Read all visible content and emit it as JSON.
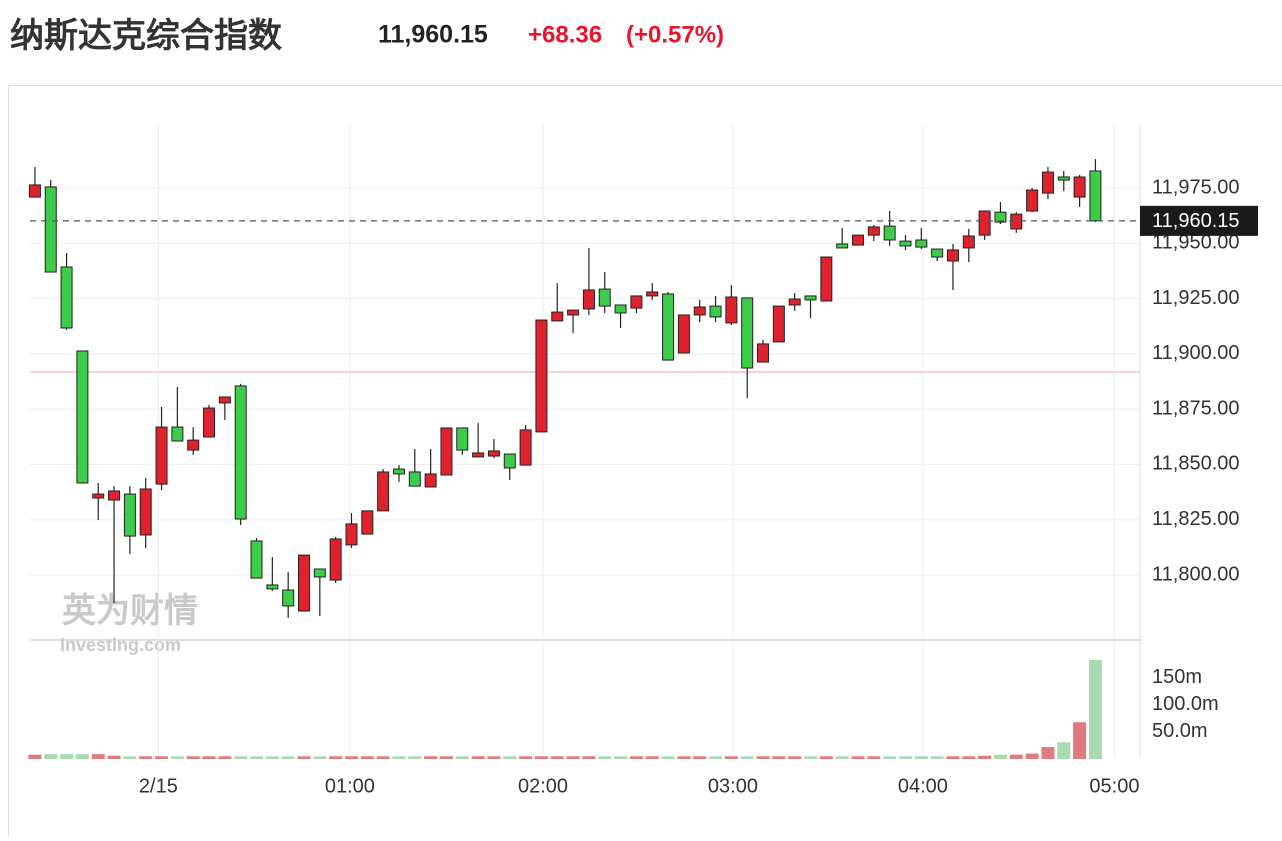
{
  "header": {
    "title": "纳斯达克综合指数",
    "price": "11,960.15",
    "change": "+68.36",
    "change_pct": "(+0.57%)"
  },
  "watermark": {
    "brand": "英为财情",
    "site": "Investing.com"
  },
  "chart_data": {
    "type": "candlestick",
    "up_color": "#e0222f",
    "down_color": "#3dcc4a",
    "volume_up_color": "#e07a7f",
    "volume_down_color": "#a9dbb3",
    "grid": true,
    "xlim": [
      -0.5,
      69.5
    ],
    "xticks": [
      {
        "value": 7.8,
        "label": "2/15"
      },
      {
        "value": 19.9,
        "label": "01:00"
      },
      {
        "value": 32.1,
        "label": "02:00"
      },
      {
        "value": 44.1,
        "label": "03:00"
      },
      {
        "value": 56.1,
        "label": "04:00"
      },
      {
        "value": 68.2,
        "label": "05:00"
      }
    ],
    "ylim": [
      11770.6,
      12003.5
    ],
    "yticks": [
      {
        "value": 11800,
        "label": "11,800.00"
      },
      {
        "value": 11825,
        "label": "11,825.00"
      },
      {
        "value": 11850,
        "label": "11,850.00"
      },
      {
        "value": 11875,
        "label": "11,875.00"
      },
      {
        "value": 11900,
        "label": "11,900.00"
      },
      {
        "value": 11925,
        "label": "11,925.00"
      },
      {
        "value": 11950,
        "label": "11,950.00"
      },
      {
        "value": 11975,
        "label": "11,975.00"
      }
    ],
    "last_price": {
      "value": 11960.15,
      "label": "11,960.15"
    },
    "prev_close": 11891.79,
    "open": [
      11970.9,
      11975.5,
      11939.3,
      11901.3,
      11834.8,
      11833.9,
      11836.6,
      11818.1,
      11841.1,
      11866.9,
      11856.5,
      11862.4,
      11877.8,
      11885.5,
      11815.4,
      11795.5,
      11793.2,
      11783.7,
      11802.7,
      11797.7,
      11813.6,
      11818.5,
      11829.0,
      11847.9,
      11846.6,
      11839.8,
      11845.2,
      11866.5,
      11853.4,
      11853.8,
      11854.7,
      11849.7,
      11864.7,
      11914.9,
      11917.6,
      11920.3,
      11929.3,
      11922.1,
      11920.7,
      11926.2,
      11927.1,
      11900.4,
      11917.6,
      11921.6,
      11914.0,
      11925.3,
      11896.3,
      11905.4,
      11922.1,
      11926.2,
      11923.9,
      11949.7,
      11949.2,
      11953.7,
      11957.8,
      11951.0,
      11951.5,
      11947.4,
      11942.0,
      11947.9,
      11953.7,
      11964.1,
      11956.5,
      11964.6,
      11972.7,
      11980.0,
      11970.9,
      11982.7
    ],
    "high": [
      11984.5,
      11978.6,
      11945.6,
      11901.3,
      11841.6,
      11840.2,
      11840.2,
      11843.9,
      11876.0,
      11885.0,
      11866.9,
      11876.9,
      11880.5,
      11886.4,
      11816.7,
      11808.1,
      11801.4,
      11809.0,
      11802.7,
      11817.2,
      11828.0,
      11829.0,
      11847.9,
      11849.7,
      11857.0,
      11857.0,
      11866.5,
      11866.5,
      11868.7,
      11861.5,
      11854.7,
      11867.8,
      11915.3,
      11932.0,
      11919.8,
      11947.9,
      11937.0,
      11922.1,
      11926.2,
      11932.0,
      11928.0,
      11917.6,
      11924.4,
      11926.2,
      11931.1,
      11925.3,
      11906.3,
      11921.6,
      11927.5,
      11926.2,
      11943.8,
      11956.9,
      11953.7,
      11958.3,
      11964.6,
      11953.7,
      11956.9,
      11947.4,
      11949.7,
      11956.5,
      11964.6,
      11968.7,
      11964.1,
      11975.0,
      11984.5,
      11982.7,
      11980.9,
      11988.1
    ],
    "low": [
      11970.9,
      11937.0,
      11910.8,
      11841.6,
      11824.9,
      11787.3,
      11809.5,
      11812.2,
      11838.4,
      11860.6,
      11854.3,
      11862.4,
      11870.1,
      11822.6,
      11798.6,
      11792.8,
      11780.6,
      11783.7,
      11781.5,
      11796.4,
      11812.2,
      11818.5,
      11829.0,
      11842.1,
      11840.2,
      11839.8,
      11845.2,
      11854.3,
      11853.4,
      11852.9,
      11843.0,
      11849.7,
      11864.7,
      11914.9,
      11909.4,
      11917.6,
      11918.5,
      11911.7,
      11918.5,
      11924.4,
      11897.2,
      11900.4,
      11914.4,
      11914.4,
      11913.0,
      11880.0,
      11896.3,
      11905.4,
      11919.4,
      11916.2,
      11923.9,
      11947.9,
      11949.2,
      11951.0,
      11948.8,
      11947.0,
      11947.4,
      11942.0,
      11928.9,
      11941.5,
      11951.5,
      11958.7,
      11954.7,
      11964.1,
      11970.0,
      11973.6,
      11966.4,
      11959.7
    ],
    "close": [
      11976.4,
      11937.0,
      11911.7,
      11841.6,
      11836.6,
      11838.0,
      11817.6,
      11838.9,
      11866.9,
      11860.6,
      11861.0,
      11875.5,
      11880.5,
      11825.3,
      11798.6,
      11793.7,
      11786.0,
      11809.0,
      11799.1,
      11816.3,
      11823.1,
      11829.0,
      11846.6,
      11845.7,
      11840.2,
      11845.7,
      11866.5,
      11856.5,
      11855.2,
      11856.1,
      11848.4,
      11865.6,
      11915.3,
      11918.9,
      11919.8,
      11928.9,
      11921.6,
      11918.5,
      11926.2,
      11928.0,
      11897.2,
      11917.6,
      11921.2,
      11916.7,
      11925.7,
      11893.6,
      11904.5,
      11921.6,
      11924.8,
      11924.4,
      11943.8,
      11947.9,
      11953.7,
      11957.4,
      11951.5,
      11948.8,
      11948.3,
      11943.8,
      11947.0,
      11953.3,
      11964.6,
      11959.6,
      11963.2,
      11974.1,
      11982.2,
      11978.6,
      11980.0,
      11960.15
    ],
    "volume": {
      "ylim": [
        0,
        220
      ],
      "yticks": [
        {
          "value": 50,
          "label": "50.0m"
        },
        {
          "value": 100,
          "label": "100.0m"
        },
        {
          "value": 150,
          "label": "150m"
        }
      ],
      "values": [
        8,
        9,
        9,
        9,
        9,
        6,
        5,
        5,
        5,
        5,
        5,
        5,
        5,
        5,
        5,
        5,
        5,
        5,
        5,
        5,
        5,
        5,
        5,
        5,
        5,
        5,
        5,
        5,
        5,
        5,
        5,
        5,
        5,
        5,
        5,
        5,
        5,
        5,
        5,
        5,
        5,
        5,
        5,
        5,
        5,
        5,
        5,
        5,
        5,
        5,
        5,
        5,
        5,
        5,
        5,
        5,
        5,
        5,
        5,
        5,
        6,
        8,
        8,
        10,
        22,
        31,
        68,
        183
      ]
    }
  }
}
